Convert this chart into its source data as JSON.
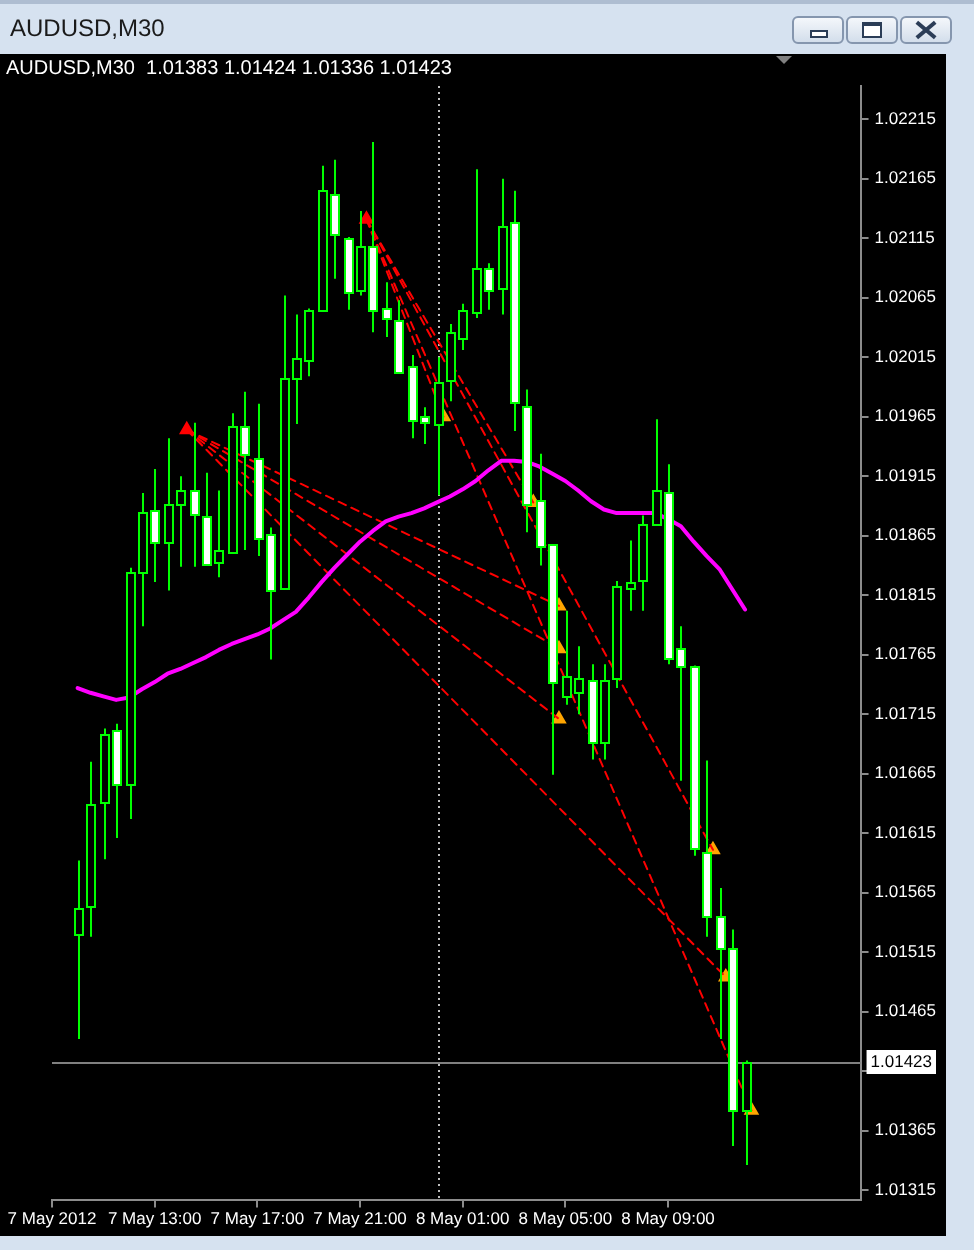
{
  "chart_data": {
    "type": "candlestick",
    "title": "AUDUSD,M30",
    "subtitle": "AUDUSD,M30  1.01383 1.01424 1.01336 1.01423",
    "xlim": [
      "2012-05-07T09:00",
      "2012-05-08T16:30"
    ],
    "xticks": [
      {
        "value": "2012-05-07T09:00",
        "label": "7 May 2012"
      },
      {
        "value": "2012-05-07T13:00",
        "label": "7 May 13:00"
      },
      {
        "value": "2012-05-07T17:00",
        "label": "7 May 17:00"
      },
      {
        "value": "2012-05-07T21:00",
        "label": "7 May 21:00"
      },
      {
        "value": "2012-05-08T01:00",
        "label": "8 May 01:00"
      },
      {
        "value": "2012-05-08T05:00",
        "label": "8 May 05:00"
      },
      {
        "value": "2012-05-08T09:00",
        "label": "8 May 09:00"
      }
    ],
    "ylim": [
      1.01307,
      1.02243
    ],
    "yticks": [
      1.01315,
      1.01365,
      {
        "value": 1.01415,
        "label": null
      },
      1.01465,
      1.01515,
      1.01565,
      1.01615,
      1.01665,
      1.01715,
      1.01765,
      1.01815,
      1.01865,
      1.01915,
      1.01965,
      1.02015,
      1.02065,
      1.02115,
      1.02165,
      1.02215
    ],
    "ref_lines": [
      {
        "axis": "y",
        "value": 1.01423,
        "label": "1.01423",
        "color": "#808080"
      },
      {
        "axis": "x",
        "value": "2012-05-08T00:00",
        "color": "#c0c0c0",
        "line_style": "dotted"
      }
    ],
    "series": [
      {
        "color": "#00ff00",
        "x": [
          "2012-05-07T10:00",
          "2012-05-07T10:30",
          "2012-05-07T11:00",
          "2012-05-07T11:30",
          "2012-05-07T12:00",
          "2012-05-07T12:30",
          "2012-05-07T13:00",
          "2012-05-07T13:30",
          "2012-05-07T14:00",
          "2012-05-07T14:30",
          "2012-05-07T15:00",
          "2012-05-07T15:30",
          "2012-05-07T16:00",
          "2012-05-07T16:30",
          "2012-05-07T17:00",
          "2012-05-07T17:30",
          "2012-05-07T18:00",
          "2012-05-07T18:30",
          "2012-05-07T19:00",
          "2012-05-07T19:30",
          "2012-05-07T20:00",
          "2012-05-07T20:30",
          "2012-05-07T21:00",
          "2012-05-07T21:30",
          "2012-05-07T22:00",
          "2012-05-07T22:30",
          "2012-05-07T23:00",
          "2012-05-07T23:30",
          "2012-05-08T00:00",
          "2012-05-08T00:30",
          "2012-05-08T01:00",
          "2012-05-08T01:30",
          "2012-05-08T02:00",
          "2012-05-08T02:30",
          "2012-05-08T03:00",
          "2012-05-08T03:30",
          "2012-05-08T04:00",
          "2012-05-08T04:30",
          "2012-05-08T05:00",
          "2012-05-08T05:30",
          "2012-05-08T06:00",
          "2012-05-08T06:30",
          "2012-05-08T07:00",
          "2012-05-08T07:30",
          "2012-05-08T08:00",
          "2012-05-08T08:30",
          "2012-05-08T09:00",
          "2012-05-08T09:30",
          "2012-05-08T10:00",
          "2012-05-08T10:30",
          "2012-05-08T11:00",
          "2012-05-08T11:30",
          "2012-05-08T12:00"
        ],
        "ohlc": [
          [
            1.01531,
            1.01592,
            1.01442,
            1.01552
          ],
          [
            1.01553,
            1.01675,
            1.01528,
            1.0164
          ],
          [
            1.01641,
            1.01703,
            1.01593,
            1.01699
          ],
          [
            1.01701,
            1.01707,
            1.01611,
            1.01656
          ],
          [
            1.01657,
            1.01838,
            1.01627,
            1.01834
          ],
          [
            1.01834,
            1.01901,
            1.01789,
            1.01885
          ],
          [
            1.01886,
            1.01921,
            1.01826,
            1.0186
          ],
          [
            1.0186,
            1.01947,
            1.01819,
            1.01891
          ],
          [
            1.01892,
            1.01915,
            1.01839,
            1.01904
          ],
          [
            1.01904,
            1.0196,
            1.01839,
            1.01883
          ],
          [
            1.01881,
            1.01918,
            1.0184,
            1.01841
          ],
          [
            1.01843,
            1.01903,
            1.0183,
            1.01853
          ],
          [
            1.01852,
            1.01968,
            1.01852,
            1.01958
          ],
          [
            1.01958,
            1.01986,
            1.01853,
            1.01934
          ],
          [
            1.0193,
            1.01976,
            1.01848,
            1.01863
          ],
          [
            1.01866,
            1.01872,
            1.01761,
            1.0182
          ],
          [
            1.01821,
            1.02067,
            1.01821,
            1.01998
          ],
          [
            1.01998,
            1.02051,
            1.01959,
            1.02014
          ],
          [
            1.02013,
            1.02056,
            1.01999,
            1.02054
          ],
          [
            1.02054,
            1.02176,
            1.02054,
            1.02155
          ],
          [
            1.02153,
            1.02181,
            1.02081,
            1.02119
          ],
          [
            1.02116,
            1.02116,
            1.02055,
            1.0207
          ],
          [
            1.02071,
            1.02138,
            1.02067,
            1.02109
          ],
          [
            1.02109,
            1.02196,
            1.02036,
            1.02055
          ],
          [
            1.02057,
            1.02078,
            1.02032,
            1.02048
          ],
          [
            1.02047,
            1.02063,
            1.02003,
            1.02003
          ],
          [
            1.02007,
            1.02017,
            1.01947,
            1.01963
          ],
          [
            1.01966,
            1.01973,
            1.01942,
            1.0196
          ],
          [
            1.01959,
            1.02015,
            1.01899,
            1.01995
          ],
          [
            1.01996,
            1.02043,
            1.01978,
            1.02036
          ],
          [
            1.02032,
            1.0206,
            1.02021,
            1.02055
          ],
          [
            1.02053,
            1.02173,
            1.02048,
            1.0209
          ],
          [
            1.0209,
            1.02094,
            1.02055,
            1.02072
          ],
          [
            1.02073,
            1.02165,
            1.02051,
            1.02126
          ],
          [
            1.02128,
            1.02155,
            1.01953,
            1.01977
          ],
          [
            1.01974,
            1.01988,
            1.01868,
            1.01892
          ],
          [
            1.01895,
            1.01934,
            1.0184,
            1.01856
          ],
          [
            1.01858,
            1.01858,
            1.01664,
            1.01742
          ],
          [
            1.01731,
            1.01802,
            1.01723,
            1.01747
          ],
          [
            1.01734,
            1.01772,
            1.01715,
            1.01745
          ],
          [
            1.01743,
            1.01757,
            1.01677,
            1.01691
          ],
          [
            1.01691,
            1.01757,
            1.01677,
            1.01744
          ],
          [
            1.01746,
            1.01827,
            1.01737,
            1.01822
          ],
          [
            1.01821,
            1.01861,
            1.01802,
            1.01826
          ],
          [
            1.01827,
            1.01882,
            1.01802,
            1.01875
          ],
          [
            1.01875,
            1.01963,
            1.01875,
            1.01903
          ],
          [
            1.01901,
            1.01925,
            1.01757,
            1.01762
          ],
          [
            1.01771,
            1.01789,
            1.01659,
            1.01756
          ],
          [
            1.01755,
            1.01756,
            1.01596,
            1.01603
          ],
          [
            1.016,
            1.01676,
            1.01528,
            1.01545
          ],
          [
            1.01546,
            1.01569,
            1.01442,
            1.01519
          ],
          [
            1.01519,
            1.01534,
            1.01352,
            1.01382
          ],
          [
            1.01383,
            1.01424,
            1.01336,
            1.01423
          ]
        ],
        "colors": [
          "#000000",
          "#000000",
          "#000000",
          "#ffffff",
          "#000000",
          "#000000",
          "#ffffff",
          "#000000",
          "#000000",
          "#ffffff",
          "#ffffff",
          "#000000",
          "#000000",
          "#ffffff",
          "#ffffff",
          "#ffffff",
          "#000000",
          "#000000",
          "#000000",
          "#000000",
          "#ffffff",
          "#ffffff",
          "#000000",
          "#ffffff",
          "#ffffff",
          "#ffffff",
          "#ffffff",
          "#ffffff",
          "#000000",
          "#000000",
          "#000000",
          "#000000",
          "#ffffff",
          "#000000",
          "#ffffff",
          "#ffffff",
          "#ffffff",
          "#ffffff",
          "#000000",
          "#000000",
          "#ffffff",
          "#000000",
          "#000000",
          "#000000",
          "#000000",
          "#000000",
          "#ffffff",
          "#ffffff",
          "#ffffff",
          "#ffffff",
          "#ffffff",
          "#ffffff",
          "#000000"
        ]
      },
      {
        "type": "line",
        "color": "#ff00ff",
        "x": [
          "2012-05-07T10:00",
          "2012-05-07T10:30",
          "2012-05-07T11:00",
          "2012-05-07T11:30",
          "2012-05-07T12:00",
          "2012-05-07T12:30",
          "2012-05-07T13:00",
          "2012-05-07T13:30",
          "2012-05-07T14:00",
          "2012-05-07T14:30",
          "2012-05-07T15:00",
          "2012-05-07T15:30",
          "2012-05-07T16:00",
          "2012-05-07T16:30",
          "2012-05-07T17:00",
          "2012-05-07T17:30",
          "2012-05-07T18:00",
          "2012-05-07T18:30",
          "2012-05-07T19:00",
          "2012-05-07T19:30",
          "2012-05-07T20:00",
          "2012-05-07T20:30",
          "2012-05-07T21:00",
          "2012-05-07T21:30",
          "2012-05-07T22:00",
          "2012-05-07T22:30",
          "2012-05-07T23:00",
          "2012-05-07T23:30",
          "2012-05-08T00:00",
          "2012-05-08T00:30",
          "2012-05-08T01:00",
          "2012-05-08T01:30",
          "2012-05-08T02:00",
          "2012-05-08T02:30",
          "2012-05-08T03:00",
          "2012-05-08T03:30",
          "2012-05-08T04:00",
          "2012-05-08T04:30",
          "2012-05-08T05:00",
          "2012-05-08T05:30",
          "2012-05-08T06:00",
          "2012-05-08T06:30",
          "2012-05-08T07:00",
          "2012-05-08T07:30",
          "2012-05-08T08:00",
          "2012-05-08T08:30",
          "2012-05-08T09:00",
          "2012-05-08T09:30",
          "2012-05-08T10:00",
          "2012-05-08T10:30",
          "2012-05-08T11:00",
          "2012-05-08T11:30",
          "2012-05-08T12:00"
        ],
        "values": [
          1.01737,
          1.01733,
          1.0173,
          1.01727,
          1.01729,
          1.01736,
          1.01742,
          1.01749,
          1.01753,
          1.01758,
          1.01763,
          1.01769,
          1.01774,
          1.01778,
          1.01782,
          1.01787,
          1.01794,
          1.01801,
          1.01813,
          1.01826,
          1.01838,
          1.01849,
          1.0186,
          1.01869,
          1.01877,
          1.01881,
          1.01884,
          1.01888,
          1.01893,
          1.01898,
          1.01904,
          1.01911,
          1.0192,
          1.01928,
          1.01928,
          1.01927,
          1.01923,
          1.01917,
          1.01911,
          1.01903,
          1.01894,
          1.01887,
          1.01884,
          1.01884,
          1.01884,
          1.01884,
          1.01879,
          1.01873,
          1.0186,
          1.01848,
          1.01837,
          1.0182,
          1.01803
        ]
      },
      {
        "type": "line",
        "color": "#ff0000",
        "line_style": "dashed",
        "x": [
          "2012-05-07T14:15",
          "2012-05-08T04:45"
        ],
        "values": [
          1.01954,
          1.01806
        ]
      },
      {
        "type": "line",
        "color": "#ff0000",
        "line_style": "dashed",
        "x": [
          "2012-05-07T14:15",
          "2012-05-08T04:45"
        ],
        "values": [
          1.01954,
          1.0177
        ]
      },
      {
        "type": "line",
        "color": "#ff0000",
        "line_style": "dashed",
        "x": [
          "2012-05-07T14:15",
          "2012-05-08T04:45"
        ],
        "values": [
          1.01954,
          1.01711
        ]
      },
      {
        "type": "line",
        "color": "#ff0000",
        "line_style": "dashed",
        "x": [
          "2012-05-07T14:15",
          "2012-05-08T11:15"
        ],
        "values": [
          1.01954,
          1.01494
        ]
      },
      {
        "type": "line",
        "color": "#ff0000",
        "line_style": "dashed",
        "x": [
          "2012-05-07T21:15",
          "2012-05-08T00:15"
        ],
        "values": [
          1.02131,
          1.01965
        ]
      },
      {
        "type": "line",
        "color": "#ff0000",
        "line_style": "dashed",
        "x": [
          "2012-05-07T21:15",
          "2012-05-08T03:45"
        ],
        "values": [
          1.02131,
          1.01893
        ]
      },
      {
        "type": "line",
        "color": "#ff0000",
        "line_style": "dashed",
        "x": [
          "2012-05-07T21:15",
          "2012-05-08T10:45"
        ],
        "values": [
          1.02131,
          1.01601
        ]
      },
      {
        "type": "line",
        "color": "#ff0000",
        "line_style": "dashed",
        "x": [
          "2012-05-07T21:15",
          "2012-05-08T12:15"
        ],
        "values": [
          1.02131,
          1.01382
        ]
      },
      {
        "type": "scatter",
        "color": "#ff0000",
        "marker": "triangle",
        "x": [
          "2012-05-07T14:15",
          "2012-05-07T21:15"
        ],
        "values": [
          1.01954,
          1.02131
        ]
      },
      {
        "type": "scatter",
        "color": "#ffa500",
        "marker": "triangle",
        "x": [
          "2012-05-08T00:15",
          "2012-05-08T03:45",
          "2012-05-08T04:45",
          "2012-05-08T04:45",
          "2012-05-08T04:45",
          "2012-05-08T10:45",
          "2012-05-08T11:15",
          "2012-05-08T12:15"
        ],
        "values": [
          1.01965,
          1.01893,
          1.01806,
          1.0177,
          1.01711,
          1.01601,
          1.01494,
          1.01382
        ]
      }
    ]
  }
}
